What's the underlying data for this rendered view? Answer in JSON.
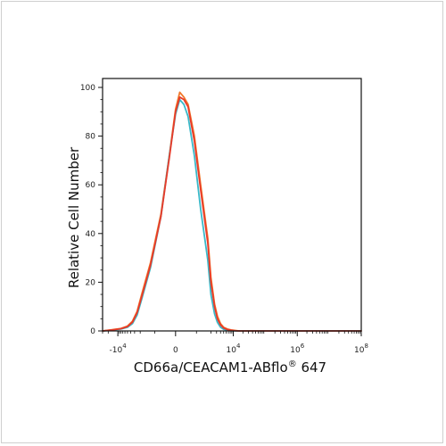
{
  "chart_data": {
    "type": "line",
    "title": "",
    "xlabel_main": "CD66a/CEACAM1-ABflo",
    "xlabel_sup": "®",
    "xlabel_tail": " 647",
    "ylabel": "Relative Cell Number",
    "ylim": [
      0,
      100
    ],
    "xscale": "biexponential",
    "xlim": [
      -30000,
      100000000
    ],
    "yticks": [
      {
        "value": 0,
        "label": "0"
      },
      {
        "value": 20,
        "label": "20"
      },
      {
        "value": 40,
        "label": "40"
      },
      {
        "value": 60,
        "label": "60"
      },
      {
        "value": 80,
        "label": "80"
      },
      {
        "value": 100,
        "label": "100"
      }
    ],
    "xticks": [
      {
        "value": -10000,
        "base": "-10",
        "exp": "4"
      },
      {
        "value": 0,
        "base": "0",
        "exp": ""
      },
      {
        "value": 10000,
        "base": "10",
        "exp": "4"
      },
      {
        "value": 1000000,
        "base": "10",
        "exp": "6"
      },
      {
        "value": 100000000,
        "base": "10",
        "exp": "8"
      }
    ],
    "grid": false,
    "legend": "none",
    "series": [
      {
        "color": "#f0782a",
        "x": [
          -30000,
          -15000,
          -8000,
          -5000,
          -3500,
          -2500,
          -1800,
          -1200,
          -700,
          -300,
          0,
          200,
          400,
          600,
          900,
          1200,
          1600,
          2000,
          2600,
          3200,
          4000,
          5000,
          6500,
          8500,
          11000,
          15000,
          25000,
          100000,
          1000000,
          100000000
        ],
        "y": [
          0,
          0.5,
          1,
          2,
          4,
          8,
          15,
          28,
          48,
          72,
          91,
          98,
          96,
          93,
          80,
          60,
          38,
          22,
          11,
          6,
          3,
          1.5,
          0.8,
          0.4,
          0.2,
          0,
          0,
          0,
          0,
          0
        ]
      },
      {
        "color": "#e83a2a",
        "x": [
          -30000,
          -15000,
          -8000,
          -5000,
          -3500,
          -2500,
          -1800,
          -1200,
          -700,
          -300,
          0,
          200,
          400,
          600,
          900,
          1200,
          1600,
          2000,
          2600,
          3200,
          4000,
          5000,
          6500,
          8500,
          11000,
          15000,
          25000,
          100000,
          1000000,
          100000000
        ],
        "y": [
          0,
          0.4,
          0.9,
          1.8,
          3.6,
          7.5,
          14,
          27,
          47,
          71,
          90,
          96,
          95,
          92,
          78,
          58,
          36,
          20,
          10,
          5,
          2.5,
          1.2,
          0.6,
          0.3,
          0.1,
          0,
          0,
          0,
          0,
          0
        ]
      },
      {
        "color": "#3ab8c8",
        "x": [
          -30000,
          -15000,
          -8000,
          -5000,
          -3500,
          -2500,
          -1800,
          -1200,
          -700,
          -300,
          0,
          200,
          400,
          600,
          900,
          1200,
          1600,
          2000,
          2600,
          3200,
          4000,
          5000,
          6500,
          8500,
          11000,
          15000,
          25000,
          100000,
          1000000,
          100000000
        ],
        "y": [
          0,
          0.3,
          0.8,
          1.5,
          3,
          6.5,
          13,
          26,
          47,
          72,
          89,
          95,
          93,
          88,
          72,
          50,
          29,
          15,
          7,
          3.5,
          1.5,
          0.7,
          0.3,
          0.1,
          0,
          0,
          0,
          0,
          0,
          0
        ]
      }
    ]
  }
}
